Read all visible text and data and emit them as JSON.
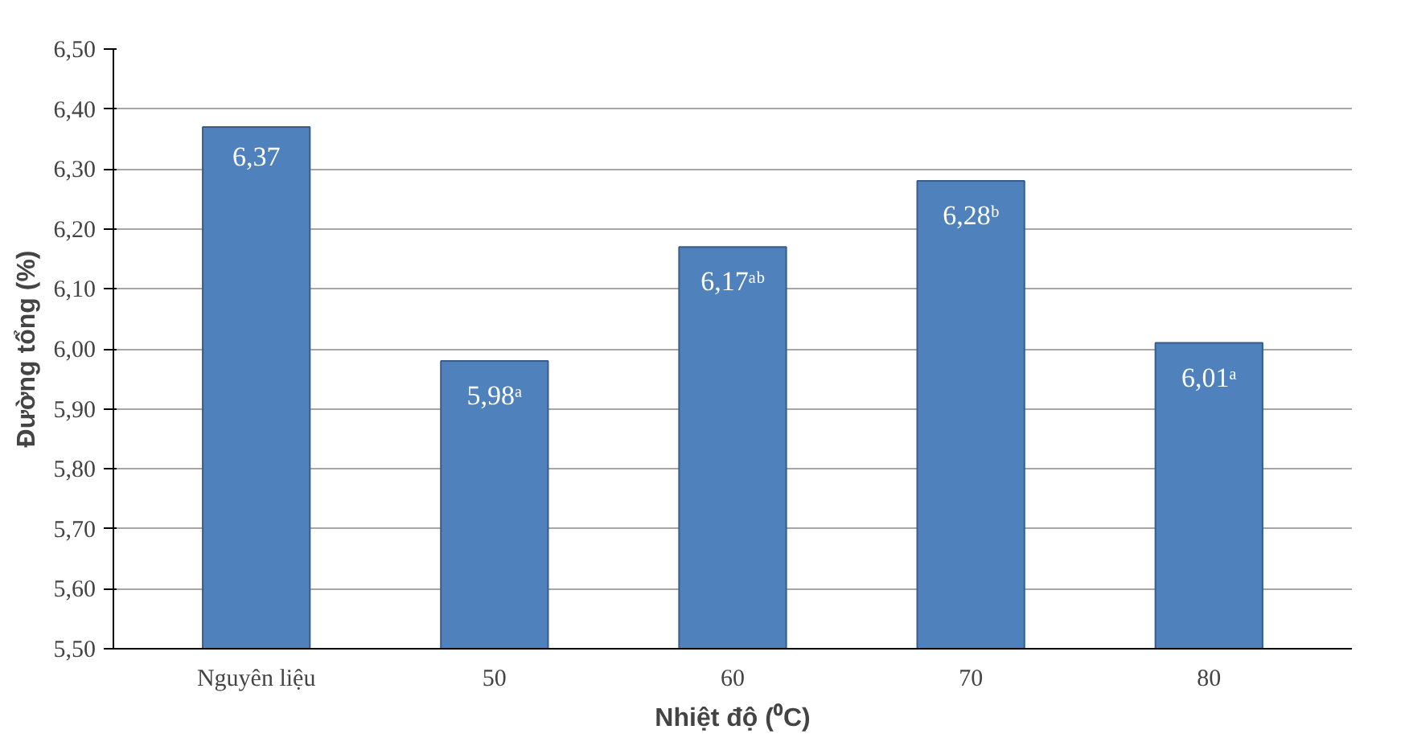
{
  "chart_data": {
    "type": "bar",
    "xlabel": "Nhiệt độ (⁰C)",
    "ylabel": "Đường tổng (%)",
    "categories": [
      "Nguyên liệu",
      "50",
      "60",
      "70",
      "80"
    ],
    "values": [
      6.37,
      5.98,
      6.17,
      6.28,
      6.01
    ],
    "value_labels": [
      "6,37",
      "5,98ᵃ",
      "6,17ᵃᵇ",
      "6,28ᵇ",
      "6,01ᵃ"
    ],
    "color": "#4f81bd",
    "ylim": [
      5.5,
      6.5
    ],
    "yticks": [
      {
        "value": 5.5,
        "label": "5,50"
      },
      {
        "value": 5.6,
        "label": "5,60"
      },
      {
        "value": 5.7,
        "label": "5,70"
      },
      {
        "value": 5.8,
        "label": "5,80"
      },
      {
        "value": 5.9,
        "label": "5,90"
      },
      {
        "value": 6.0,
        "label": "6,00"
      },
      {
        "value": 6.1,
        "label": "6,10"
      },
      {
        "value": 6.2,
        "label": "6,20"
      },
      {
        "value": 6.3,
        "label": "6,30"
      },
      {
        "value": 6.4,
        "label": "6,40"
      },
      {
        "value": 6.5,
        "label": "6,50"
      }
    ],
    "grid": "y"
  }
}
